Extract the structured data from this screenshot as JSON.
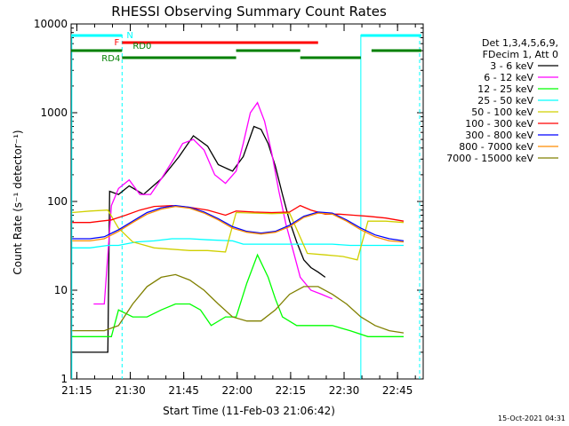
{
  "chart_data": {
    "type": "line",
    "title": "RHESSI Observing Summary Count Rates",
    "xlabel": "Start Time (11-Feb-03 21:06:42)",
    "ylabel": "Count Rate (s⁻¹ detector⁻¹)",
    "ylog": true,
    "ylim": [
      1,
      10000
    ],
    "y_ticks": [
      1,
      10,
      100,
      1000,
      10000
    ],
    "y_tick_labels": [
      "1",
      "10",
      "100",
      "1000",
      "10000"
    ],
    "xlim": [
      6.7,
      105.5
    ],
    "x_tick_values": [
      8.3,
      23.3,
      38.3,
      53.3,
      68.3,
      83.3,
      98.3
    ],
    "x_tick_labels": [
      "21:15",
      "21:30",
      "21:45",
      "22:00",
      "22:15",
      "22:30",
      "22:45"
    ],
    "x_units": "minutes after 21:06:42",
    "legend_header": [
      "Det 1,3,4,5,6,9,",
      "FDecim 1, Att 0"
    ],
    "legend_position": "right",
    "series": [
      {
        "name": "3 - 6 keV",
        "color": "#000000",
        "x": [
          7,
          14,
          17,
          17.5,
          20,
          23,
          27,
          32,
          37,
          41,
          45,
          48,
          52,
          55,
          58,
          60,
          62,
          64,
          66,
          68,
          70,
          72,
          74,
          76,
          78
        ],
        "y": [
          2,
          2,
          2,
          130,
          120,
          150,
          120,
          180,
          320,
          550,
          420,
          260,
          220,
          320,
          700,
          650,
          450,
          250,
          120,
          60,
          35,
          22,
          18,
          16,
          14
        ]
      },
      {
        "name": "6 - 12 keV",
        "color": "#ff00ff",
        "x": [
          13,
          16,
          18,
          20,
          23,
          26,
          29,
          32,
          35,
          38,
          41,
          44,
          47,
          50,
          53,
          55,
          57,
          59,
          61,
          63,
          65,
          67,
          69,
          71,
          74,
          77,
          80
        ],
        "y": [
          7,
          7,
          90,
          140,
          175,
          120,
          120,
          180,
          280,
          450,
          500,
          380,
          200,
          160,
          220,
          450,
          1000,
          1300,
          800,
          350,
          130,
          55,
          28,
          14,
          10,
          9,
          8
        ]
      },
      {
        "name": "12 - 25 keV",
        "color": "#00ff00",
        "x": [
          7,
          12,
          15,
          18,
          20,
          24,
          28,
          32,
          36,
          40,
          43,
          46,
          50,
          53,
          56,
          59,
          62,
          64,
          66,
          70,
          75,
          80,
          85,
          90,
          95,
          100
        ],
        "y": [
          3,
          3,
          3,
          3,
          6,
          5,
          5,
          6,
          7,
          7,
          6,
          4,
          5,
          5,
          12,
          25,
          14,
          8,
          5,
          4,
          4,
          4,
          3.5,
          3,
          3,
          3
        ]
      },
      {
        "name": "25 - 50 keV",
        "color": "#00ffff",
        "x": [
          7,
          12,
          17,
          20,
          25,
          30,
          35,
          40,
          45,
          52,
          55,
          60,
          65,
          70,
          75,
          80,
          85,
          90,
          95,
          100
        ],
        "y": [
          30,
          30,
          32,
          32,
          35,
          36,
          38,
          38,
          37,
          36,
          33,
          33,
          33,
          33,
          33,
          33,
          32,
          32,
          32,
          32
        ]
      },
      {
        "name": "50 - 100 keV",
        "color": "#d0d000",
        "x": [
          7,
          12,
          17,
          20,
          24,
          30,
          35,
          40,
          45,
          50,
          53,
          58,
          63,
          68,
          73,
          78,
          83,
          87,
          90,
          95,
          100
        ],
        "y": [
          75,
          78,
          80,
          50,
          35,
          30,
          29,
          28,
          28,
          27,
          75,
          74,
          73,
          74,
          26,
          25,
          24,
          22,
          60,
          60,
          58
        ]
      },
      {
        "name": "100 - 300 keV",
        "color": "#ff0000",
        "x": [
          7,
          12,
          15,
          18,
          22,
          26,
          30,
          35,
          40,
          45,
          50,
          53,
          58,
          63,
          68,
          71,
          74,
          78,
          82,
          86,
          90,
          95,
          100
        ],
        "y": [
          58,
          58,
          60,
          62,
          70,
          80,
          88,
          90,
          86,
          80,
          70,
          78,
          76,
          75,
          76,
          90,
          80,
          72,
          72,
          70,
          68,
          65,
          60
        ]
      },
      {
        "name": "300 - 800 keV",
        "color": "#0000ff",
        "x": [
          7,
          12,
          16,
          20,
          24,
          28,
          32,
          36,
          40,
          44,
          48,
          52,
          56,
          60,
          64,
          68,
          72,
          76,
          80,
          84,
          88,
          92,
          96,
          100
        ],
        "y": [
          38,
          38,
          40,
          48,
          60,
          75,
          85,
          90,
          86,
          76,
          64,
          52,
          46,
          44,
          46,
          54,
          68,
          76,
          74,
          62,
          50,
          42,
          38,
          36
        ]
      },
      {
        "name": "800 - 7000 keV",
        "color": "#ff8c00",
        "x": [
          7,
          12,
          16,
          20,
          24,
          28,
          32,
          36,
          40,
          44,
          48,
          52,
          56,
          60,
          64,
          68,
          72,
          76,
          80,
          84,
          88,
          92,
          96,
          100
        ],
        "y": [
          36,
          36,
          38,
          46,
          58,
          72,
          82,
          88,
          84,
          74,
          62,
          50,
          45,
          43,
          45,
          52,
          66,
          74,
          72,
          60,
          48,
          40,
          36,
          35
        ]
      },
      {
        "name": "7000 - 15000 keV",
        "color": "#808000",
        "x": [
          7,
          12,
          16,
          20,
          24,
          28,
          32,
          36,
          40,
          44,
          48,
          52,
          56,
          60,
          64,
          68,
          72,
          76,
          80,
          84,
          88,
          92,
          96,
          100
        ],
        "y": [
          3.5,
          3.5,
          3.5,
          4,
          7,
          11,
          14,
          15,
          13,
          10,
          7,
          5,
          4.5,
          4.5,
          6,
          9,
          11,
          11,
          9,
          7,
          5,
          4,
          3.5,
          3.3
        ]
      }
    ],
    "flag_bars": [
      {
        "label": "N",
        "color": "#00ffff",
        "row": 1,
        "segments": [
          [
            6.7,
            21
          ],
          [
            88,
            105
          ]
        ]
      },
      {
        "label": "F",
        "color": "#ff0000",
        "row": 2,
        "segments": [
          [
            21,
            76
          ]
        ]
      },
      {
        "label": "RD0",
        "color": "#008000",
        "row": 3,
        "segments": [
          [
            6.7,
            21
          ],
          [
            53,
            71
          ],
          [
            91,
            105
          ]
        ]
      },
      {
        "label": "RD4",
        "color": "#008000",
        "row": 4,
        "segments": [
          [
            21,
            53
          ],
          [
            71,
            88
          ]
        ]
      }
    ],
    "vertical_lines": [
      {
        "x": 6.9,
        "color": "#00ffff",
        "style": "solid"
      },
      {
        "x": 21,
        "color": "#00ffff",
        "style": "dashed"
      },
      {
        "x": 88,
        "color": "#00ffff",
        "style": "solid"
      },
      {
        "x": 104.5,
        "color": "#00ffff",
        "style": "dashed"
      }
    ],
    "grid": false
  },
  "timestamp": "15-Oct-2021 04:31"
}
